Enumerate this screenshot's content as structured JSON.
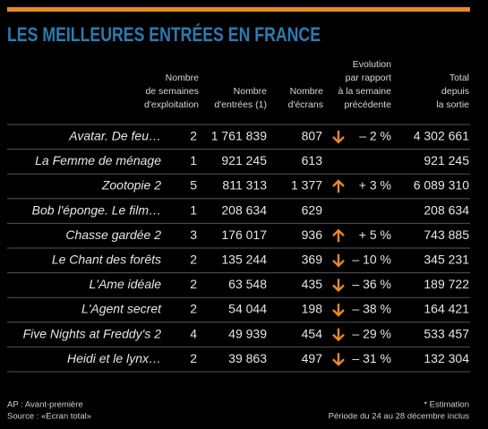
{
  "header": {
    "title": "LES MEILLEURES ENTRÉES EN FRANCE"
  },
  "table": {
    "columns": [
      {
        "lines": [
          "Nombre",
          "de semaines",
          "d'exploitation"
        ]
      },
      {
        "lines": [
          "Nombre",
          "d'entrées (1)"
        ]
      },
      {
        "lines": [
          "Nombre",
          "d'écrans"
        ]
      },
      {
        "lines": [
          "Evolution",
          "par rapport",
          "à la semaine",
          "précédente"
        ]
      },
      {
        "lines": [
          "Total",
          "depuis",
          "la sortie"
        ]
      }
    ],
    "rows": [
      {
        "film": "Avatar. De feu…",
        "weeks": 2,
        "entries": "1 761 839",
        "screens": "807",
        "trend": "down",
        "evolution": "– 2 %",
        "total": "4 302 661"
      },
      {
        "film": "La Femme de ménage",
        "weeks": 1,
        "entries": "921 245",
        "screens": "613",
        "trend": null,
        "evolution": null,
        "total": "921 245"
      },
      {
        "film": "Zootopie 2",
        "weeks": 5,
        "entries": "811 313",
        "screens": "1 377",
        "trend": "up",
        "evolution": "+ 3 %",
        "total": "6 089 310"
      },
      {
        "film": "Bob l'éponge. Le film…",
        "weeks": 1,
        "entries": "208 634",
        "screens": "629",
        "trend": null,
        "evolution": null,
        "total": "208 634"
      },
      {
        "film": "Chasse gardée 2",
        "weeks": 3,
        "entries": "176 017",
        "screens": "936",
        "trend": "up",
        "evolution": "+ 5 %",
        "total": "743 885"
      },
      {
        "film": "Le Chant des forêts",
        "weeks": 2,
        "entries": "135 244",
        "screens": "369",
        "trend": "down",
        "evolution": "– 10 %",
        "total": "345 231"
      },
      {
        "film": "L'Ame idéale",
        "weeks": 2,
        "entries": "63 548",
        "screens": "435",
        "trend": "down",
        "evolution": "– 36 %",
        "total": "189 722"
      },
      {
        "film": "L'Agent secret",
        "weeks": 2,
        "entries": "54 044",
        "screens": "198",
        "trend": "down",
        "evolution": "– 38 %",
        "total": "164 421"
      },
      {
        "film": "Five Nights at Freddy's 2",
        "weeks": 4,
        "entries": "49 939",
        "screens": "454",
        "trend": "down",
        "evolution": "– 29 %",
        "total": "533 457"
      },
      {
        "film": "Heidi et le lynx…",
        "weeks": 2,
        "entries": "39 863",
        "screens": "497",
        "trend": "down",
        "evolution": "– 31 %",
        "total": "132 304"
      }
    ]
  },
  "footer": {
    "left": [
      "AP : Avant-première",
      "Source : «Ecran total»"
    ],
    "right": [
      "* Estimation",
      "Période du 24 au 28 décembre inclus"
    ]
  }
}
